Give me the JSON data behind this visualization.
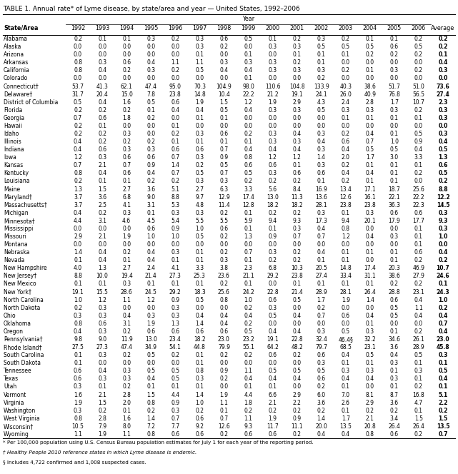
{
  "title": "TABLE 1. Annual rate* of Lyme disease, by state/area and year — United States, 1992–2006",
  "year_header": "Year",
  "columns": [
    "State/Area",
    "1992",
    "1993",
    "1994",
    "1995",
    "1996",
    "1997",
    "1998",
    "1999",
    "2000",
    "2001",
    "2002",
    "2003",
    "2004",
    "2005",
    "2006",
    "Average"
  ],
  "rows": [
    [
      "Alabama",
      "0.2",
      "0.1",
      "0.1",
      "0.3",
      "0.2",
      "0.3",
      "0.6",
      "0.5",
      "0.1",
      "0.2",
      "0.3",
      "0.2",
      "0.1",
      "0.1",
      "0.2",
      "0.2"
    ],
    [
      "Alaska",
      "0.0",
      "0.0",
      "0.0",
      "0.0",
      "0.0",
      "0.3",
      "0.2",
      "0.0",
      "0.3",
      "0.3",
      "0.5",
      "0.5",
      "0.5",
      "0.6",
      "0.5",
      "0.2"
    ],
    [
      "Arizona",
      "0.0",
      "0.0",
      "0.0",
      "0.0",
      "0.0",
      "0.1",
      "0.0",
      "0.1",
      "0.0",
      "0.1",
      "0.1",
      "0.1",
      "0.2",
      "0.2",
      "0.2",
      "0.1"
    ],
    [
      "Arkansas",
      "0.8",
      "0.3",
      "0.6",
      "0.4",
      "1.1",
      "1.1",
      "0.3",
      "0.3",
      "0.3",
      "0.2",
      "0.1",
      "0.0",
      "0.0",
      "0.0",
      "0.0",
      "0.4"
    ],
    [
      "California",
      "0.8",
      "0.4",
      "0.2",
      "0.3",
      "0.2",
      "0.5",
      "0.4",
      "0.4",
      "0.3",
      "0.3",
      "0.3",
      "0.2",
      "0.1",
      "0.3",
      "0.2",
      "0.3"
    ],
    [
      "Colorado",
      "0.0",
      "0.0",
      "0.0",
      "0.0",
      "0.0",
      "0.0",
      "0.0",
      "0.1",
      "0.0",
      "0.0",
      "0.2",
      "0.0",
      "0.0",
      "0.0",
      "0.0",
      "0.0"
    ],
    [
      "Connecticut†",
      "53.7",
      "41.3",
      "62.1",
      "47.4",
      "95.0",
      "70.3",
      "104.9",
      "98.0",
      "110.6",
      "104.8",
      "133.9",
      "40.3",
      "38.6",
      "51.7",
      "51.0",
      "73.6"
    ],
    [
      "Delaware†",
      "31.7",
      "20.4",
      "15.0",
      "7.8",
      "23.8",
      "14.8",
      "10.4",
      "22.2",
      "21.2",
      "19.1",
      "24.1",
      "26.0",
      "40.9",
      "76.8",
      "56.5",
      "27.4"
    ],
    [
      "District of Columbia",
      "0.5",
      "0.4",
      "1.6",
      "0.5",
      "0.6",
      "1.9",
      "1.5",
      "1.2",
      "1.9",
      "2.9",
      "4.3",
      "2.4",
      "2.8",
      "1.7",
      "10.7",
      "2.3"
    ],
    [
      "Florida",
      "0.2",
      "0.2",
      "0.2",
      "0.1",
      "0.4",
      "0.4",
      "0.5",
      "0.4",
      "0.3",
      "0.3",
      "0.5",
      "0.3",
      "0.3",
      "0.3",
      "0.2",
      "0.3"
    ],
    [
      "Georgia",
      "0.7",
      "0.6",
      "1.8",
      "0.2",
      "0.0",
      "0.1",
      "0.1",
      "0.0",
      "0.0",
      "0.0",
      "0.0",
      "0.1",
      "0.1",
      "0.1",
      "0.1",
      "0.3"
    ],
    [
      "Hawaii",
      "0.2",
      "0.1",
      "0.0",
      "0.0",
      "0.1",
      "0.0",
      "0.0",
      "0.0",
      "0.0",
      "0.0",
      "0.0",
      "0.0",
      "0.0",
      "0.0",
      "0.0",
      "0.0"
    ],
    [
      "Idaho",
      "0.2",
      "0.2",
      "0.3",
      "0.0",
      "0.2",
      "0.3",
      "0.6",
      "0.2",
      "0.3",
      "0.4",
      "0.3",
      "0.2",
      "0.4",
      "0.1",
      "0.5",
      "0.3"
    ],
    [
      "Illinois",
      "0.4",
      "0.2",
      "0.2",
      "0.2",
      "0.1",
      "0.1",
      "0.1",
      "0.1",
      "0.3",
      "0.3",
      "0.4",
      "0.6",
      "0.7",
      "1.0",
      "0.9",
      "0.4"
    ],
    [
      "Indiana",
      "0.4",
      "0.6",
      "0.3",
      "0.3",
      "0.6",
      "0.6",
      "0.7",
      "0.4",
      "0.4",
      "0.4",
      "0.3",
      "0.4",
      "0.5",
      "0.5",
      "0.4",
      "0.5"
    ],
    [
      "Iowa",
      "1.2",
      "0.3",
      "0.6",
      "0.6",
      "0.7",
      "0.3",
      "0.9",
      "0.8",
      "1.2",
      "1.2",
      "1.4",
      "2.0",
      "1.7",
      "3.0",
      "3.3",
      "1.3"
    ],
    [
      "Kansas",
      "0.7",
      "2.1",
      "0.7",
      "0.9",
      "1.4",
      "0.2",
      "0.5",
      "0.6",
      "0.6",
      "0.1",
      "0.3",
      "0.2",
      "0.1",
      "0.1",
      "0.1",
      "0.6"
    ],
    [
      "Kentucky",
      "0.8",
      "0.4",
      "0.6",
      "0.4",
      "0.7",
      "0.5",
      "0.7",
      "0.5",
      "0.3",
      "0.6",
      "0.6",
      "0.4",
      "0.4",
      "0.1",
      "0.2",
      "0.5"
    ],
    [
      "Louisiana",
      "0.2",
      "0.1",
      "0.1",
      "0.2",
      "0.2",
      "0.3",
      "0.3",
      "0.2",
      "0.2",
      "0.2",
      "0.1",
      "0.2",
      "0.1",
      "0.1",
      "0.0",
      "0.2"
    ],
    [
      "Maine",
      "1.3",
      "1.5",
      "2.7",
      "3.6",
      "5.1",
      "2.7",
      "6.3",
      "3.3",
      "5.6",
      "8.4",
      "16.9",
      "13.4",
      "17.1",
      "18.7",
      "25.6",
      "8.8"
    ],
    [
      "Maryland†",
      "3.7",
      "3.6",
      "6.8",
      "9.0",
      "8.8",
      "9.7",
      "12.9",
      "17.4",
      "13.0",
      "11.3",
      "13.6",
      "12.6",
      "16.1",
      "22.1",
      "22.2",
      "12.2"
    ],
    [
      "Massachusetts†",
      "3.7",
      "2.5",
      "4.1",
      "3.1",
      "5.3",
      "4.8",
      "11.4",
      "12.8",
      "18.2",
      "18.2",
      "28.1",
      "23.8",
      "23.8",
      "36.3",
      "22.3",
      "14.5"
    ],
    [
      "Michigan",
      "0.4",
      "0.2",
      "0.3",
      "0.1",
      "0.3",
      "0.3",
      "0.2",
      "0.1",
      "0.2",
      "0.2",
      "0.3",
      "0.1",
      "0.3",
      "0.6",
      "0.6",
      "0.3"
    ],
    [
      "Minnesota†",
      "4.4",
      "3.1",
      "4.6",
      "4.5",
      "5.4",
      "5.5",
      "5.5",
      "5.9",
      "9.4",
      "9.3",
      "17.3",
      "9.4",
      "20.1",
      "17.9",
      "17.7",
      "9.3"
    ],
    [
      "Mississippi",
      "0.0",
      "0.0",
      "0.0",
      "0.6",
      "0.9",
      "1.0",
      "0.6",
      "0.1",
      "0.1",
      "0.3",
      "0.4",
      "0.8",
      "0.0",
      "0.0",
      "0.1",
      "0.3"
    ],
    [
      "Missouri",
      "2.9",
      "2.1",
      "1.9",
      "1.0",
      "1.0",
      "0.5",
      "0.2",
      "1.3",
      "0.9",
      "0.7",
      "0.7",
      "1.2",
      "0.4",
      "0.3",
      "0.1",
      "1.0"
    ],
    [
      "Montana",
      "0.0",
      "0.0",
      "0.0",
      "0.0",
      "0.0",
      "0.0",
      "0.0",
      "0.0",
      "0.0",
      "0.0",
      "0.0",
      "0.0",
      "0.0",
      "0.0",
      "0.1",
      "0.0"
    ],
    [
      "Nebraska",
      "1.4",
      "0.4",
      "0.2",
      "0.4",
      "0.3",
      "0.1",
      "0.2",
      "0.7",
      "0.3",
      "0.2",
      "0.4",
      "0.1",
      "0.1",
      "0.1",
      "0.6",
      "0.4"
    ],
    [
      "Nevada",
      "0.1",
      "0.4",
      "0.1",
      "0.4",
      "0.1",
      "0.1",
      "0.3",
      "0.1",
      "0.2",
      "0.2",
      "0.1",
      "0.1",
      "0.0",
      "0.1",
      "0.2",
      "0.2"
    ],
    [
      "New Hampshire",
      "4.0",
      "1.3",
      "2.7",
      "2.4",
      "4.1",
      "3.3",
      "3.8",
      "2.3",
      "6.8",
      "10.3",
      "20.5",
      "14.8",
      "17.4",
      "20.3",
      "46.9",
      "10.7"
    ],
    [
      "New Jersey†",
      "8.8",
      "10.0",
      "19.4",
      "21.4",
      "27.3",
      "25.3",
      "23.6",
      "21.1",
      "29.2",
      "23.8",
      "27.4",
      "33.4",
      "31.1",
      "38.6",
      "27.9",
      "24.6"
    ],
    [
      "New Mexico",
      "0.1",
      "0.1",
      "0.3",
      "0.1",
      "0.1",
      "0.1",
      "0.2",
      "0.1",
      "0.0",
      "0.1",
      "0.1",
      "0.1",
      "0.1",
      "0.2",
      "0.2",
      "0.1"
    ],
    [
      "New York†",
      "19.1",
      "15.5",
      "28.6",
      "24.5",
      "29.2",
      "18.3",
      "25.6",
      "24.2",
      "22.8",
      "21.4",
      "28.9",
      "28.1",
      "26.4",
      "28.8",
      "23.1",
      "24.3"
    ],
    [
      "North Carolina",
      "1.0",
      "1.2",
      "1.1",
      "1.2",
      "0.9",
      "0.5",
      "0.8",
      "1.0",
      "0.6",
      "0.5",
      "1.7",
      "1.9",
      "1.4",
      "0.6",
      "0.4",
      "1.0"
    ],
    [
      "North Dakota",
      "0.2",
      "0.3",
      "0.0",
      "0.0",
      "0.3",
      "0.0",
      "0.0",
      "0.2",
      "0.3",
      "0.0",
      "0.2",
      "0.0",
      "0.0",
      "0.5",
      "1.1",
      "0.2"
    ],
    [
      "Ohio",
      "0.3",
      "0.3",
      "0.4",
      "0.3",
      "0.3",
      "0.4",
      "0.4",
      "0.4",
      "0.5",
      "0.4",
      "0.7",
      "0.6",
      "0.4",
      "0.5",
      "0.4",
      "0.4"
    ],
    [
      "Oklahoma",
      "0.8",
      "0.6",
      "3.1",
      "1.9",
      "1.3",
      "1.4",
      "0.4",
      "0.2",
      "0.0",
      "0.0",
      "0.0",
      "0.0",
      "0.1",
      "0.0",
      "0.0",
      "0.7"
    ],
    [
      "Oregon",
      "0.4",
      "0.3",
      "0.2",
      "0.6",
      "0.6",
      "0.6",
      "0.6",
      "0.5",
      "0.4",
      "0.4",
      "0.3",
      "0.5",
      "0.3",
      "0.1",
      "0.2",
      "0.4"
    ],
    [
      "Pennsylvania†",
      "9.8",
      "9.0",
      "11.9",
      "13.0",
      "23.4",
      "18.2",
      "23.0",
      "23.2",
      "19.1",
      "22.8",
      "32.4",
      "46.4§",
      "32.2",
      "34.6",
      "26.1",
      "23.0"
    ],
    [
      "Rhode Island†",
      "27.5",
      "27.3",
      "47.4",
      "34.9",
      "54.1",
      "44.8",
      "79.9",
      "55.1",
      "64.2",
      "48.2",
      "79.7",
      "68.5",
      "23.1",
      "3.6",
      "28.9",
      "45.8"
    ],
    [
      "South Carolina",
      "0.1",
      "0.3",
      "0.2",
      "0.5",
      "0.2",
      "0.1",
      "0.2",
      "0.2",
      "0.6",
      "0.2",
      "0.6",
      "0.4",
      "0.5",
      "0.4",
      "0.5",
      "0.3"
    ],
    [
      "South Dakota",
      "0.1",
      "0.0",
      "0.0",
      "0.0",
      "0.0",
      "0.1",
      "0.0",
      "0.0",
      "0.0",
      "0.0",
      "0.3",
      "0.1",
      "0.1",
      "0.3",
      "0.1",
      "0.1"
    ],
    [
      "Tennessee",
      "0.6",
      "0.4",
      "0.3",
      "0.5",
      "0.5",
      "0.8",
      "0.9",
      "1.1",
      "0.5",
      "0.5",
      "0.5",
      "0.3",
      "0.3",
      "0.1",
      "0.3",
      "0.5"
    ],
    [
      "Texas",
      "0.6",
      "0.3",
      "0.3",
      "0.4",
      "0.5",
      "0.3",
      "0.2",
      "0.4",
      "0.4",
      "0.4",
      "0.6",
      "0.4",
      "0.4",
      "0.3",
      "0.1",
      "0.4"
    ],
    [
      "Utah",
      "0.3",
      "0.1",
      "0.2",
      "0.1",
      "0.1",
      "0.1",
      "0.0",
      "0.1",
      "0.1",
      "0.0",
      "0.2",
      "0.1",
      "0.0",
      "0.1",
      "0.2",
      "0.1"
    ],
    [
      "Vermont",
      "1.6",
      "2.1",
      "2.8",
      "1.5",
      "4.4",
      "1.4",
      "1.9",
      "4.4",
      "6.6",
      "2.9",
      "6.0",
      "7.0",
      "8.1",
      "8.7",
      "16.8",
      "5.1"
    ],
    [
      "Virginia",
      "1.9",
      "1.5",
      "2.0",
      "0.8",
      "0.9",
      "1.0",
      "1.1",
      "1.8",
      "2.1",
      "2.2",
      "3.6",
      "2.6",
      "2.9",
      "3.6",
      "4.7",
      "2.2"
    ],
    [
      "Washington",
      "0.3",
      "0.2",
      "0.1",
      "0.2",
      "0.3",
      "0.2",
      "0.1",
      "0.2",
      "0.2",
      "0.2",
      "0.2",
      "0.1",
      "0.2",
      "0.2",
      "0.1",
      "0.2"
    ],
    [
      "West Virginia",
      "0.8",
      "2.8",
      "1.6",
      "1.4",
      "0.7",
      "0.6",
      "0.7",
      "1.1",
      "1.9",
      "0.9",
      "1.4",
      "1.7",
      "2.1",
      "3.4",
      "1.5",
      "1.5"
    ],
    [
      "Wisconsin†",
      "10.5",
      "7.9",
      "8.0",
      "7.2",
      "7.7",
      "9.2",
      "12.6",
      "9.3",
      "11.7",
      "11.1",
      "20.0",
      "13.5",
      "20.8",
      "26.4",
      "26.4",
      "13.5"
    ],
    [
      "Wyoming",
      "1.1",
      "1.9",
      "1.1",
      "0.8",
      "0.6",
      "0.6",
      "0.2",
      "0.6",
      "0.6",
      "0.2",
      "0.4",
      "0.4",
      "0.8",
      "0.6",
      "0.2",
      "0.7"
    ]
  ],
  "footnotes": [
    "* Per 100,000 population using U.S. Census Bureau population estimates for July 1 for each year of the reporting period.",
    "† Healthy People 2010 reference states in which Lyme disease is endemic.",
    "§ Includes 4,722 confirmed and 1,008 suspected cases."
  ],
  "bg_color": "#ffffff",
  "border_color": "#000000",
  "text_color": "#000000",
  "title_fontsize": 6.5,
  "header_fontsize": 5.8,
  "cell_fontsize": 5.5,
  "footnote_fontsize": 5.2
}
